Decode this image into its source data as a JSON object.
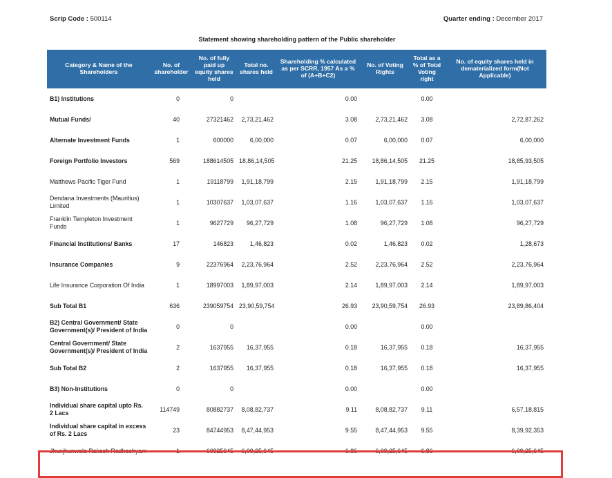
{
  "header": {
    "scrip_code_label": "Scrip Code : ",
    "scrip_code": "500114",
    "quarter_label": "Quarter ending : ",
    "quarter": "December 2017"
  },
  "title": "Statement showing shareholding pattern of the Public shareholder",
  "columns": [
    "Category & Name of the Shareholders",
    "No. of shareholder",
    "No. of fully paid up equity shares held",
    "Total no. shares held",
    "Shareholding % calculated as per SCRR, 1957 As a % of (A+B+C2)",
    "No. of Voting Rights",
    "Total as a % of Total Voting right",
    "No. of equity shares held in dematerialized form(Not Applicable)"
  ],
  "rows": [
    {
      "bold": true,
      "cells": [
        "B1) Institutions",
        "0",
        "0",
        "",
        "0.00",
        "",
        "0.00",
        ""
      ]
    },
    {
      "bold": true,
      "cells": [
        "Mutual Funds/",
        "40",
        "27321462",
        "2,73,21,462",
        "3.08",
        "2,73,21,462",
        "3.08",
        "2,72,87,262"
      ]
    },
    {
      "bold": true,
      "cells": [
        "Alternate Investment Funds",
        "1",
        "600000",
        "6,00,000",
        "0.07",
        "6,00,000",
        "0.07",
        "6,00,000"
      ]
    },
    {
      "bold": true,
      "cells": [
        "Foreign Portfolio Investors",
        "569",
        "188614505",
        "18,86,14,505",
        "21.25",
        "18,86,14,505",
        "21.25",
        "18,85,93,505"
      ]
    },
    {
      "bold": false,
      "cells": [
        "Matthews Pacific Tiger Fund",
        "1",
        "19118799",
        "1,91,18,799",
        "2.15",
        "1,91,18,799",
        "2.15",
        "1,91,18,799"
      ]
    },
    {
      "bold": false,
      "cells": [
        "Dendana Investments (Mauritius) Limited",
        "1",
        "10307637",
        "1,03,07,637",
        "1.16",
        "1,03,07,637",
        "1.16",
        "1,03,07,637"
      ]
    },
    {
      "bold": false,
      "cells": [
        "Franklin Templeton Investment Funds",
        "1",
        "9627729",
        "96,27,729",
        "1.08",
        "96,27,729",
        "1.08",
        "96,27,729"
      ]
    },
    {
      "bold": true,
      "cells": [
        "Financial Institutions/ Banks",
        "17",
        "146823",
        "1,46,823",
        "0.02",
        "1,46,823",
        "0.02",
        "1,28,673"
      ]
    },
    {
      "bold": true,
      "cells": [
        "Insurance Companies",
        "9",
        "22376964",
        "2,23,76,964",
        "2.52",
        "2,23,76,964",
        "2.52",
        "2,23,76,964"
      ]
    },
    {
      "bold": false,
      "cells": [
        "Life Insurance Corporation Of India",
        "1",
        "18997003",
        "1,89,97,003",
        "2.14",
        "1,89,97,003",
        "2.14",
        "1,89,97,003"
      ]
    },
    {
      "bold": true,
      "cells": [
        "Sub Total B1",
        "636",
        "239059754",
        "23,90,59,754",
        "26.93",
        "23,90,59,754",
        "26.93",
        "23,89,86,404"
      ]
    },
    {
      "bold": true,
      "cells": [
        "B2) Central Government/ State Government(s)/ President of India",
        "0",
        "0",
        "",
        "0.00",
        "",
        "0.00",
        ""
      ]
    },
    {
      "bold": true,
      "cells": [
        "Central Government/ State Government(s)/ President of India",
        "2",
        "1637955",
        "16,37,955",
        "0.18",
        "16,37,955",
        "0.18",
        "16,37,955"
      ]
    },
    {
      "bold": true,
      "cells": [
        "Sub Total B2",
        "2",
        "1637955",
        "16,37,955",
        "0.18",
        "16,37,955",
        "0.18",
        "16,37,955"
      ]
    },
    {
      "bold": true,
      "cells": [
        "B3) Non-Institutions",
        "0",
        "0",
        "",
        "0.00",
        "",
        "0.00",
        ""
      ]
    },
    {
      "bold": true,
      "cells": [
        "Individual share capital upto Rs. 2 Lacs",
        "114749",
        "80882737",
        "8,08,82,737",
        "9.11",
        "8,08,82,737",
        "9.11",
        "6,57,18,815"
      ]
    },
    {
      "bold": true,
      "cells": [
        "Individual share capital in excess of Rs. 2 Lacs",
        "23",
        "84744953",
        "8,47,44,953",
        "9.55",
        "8,47,44,953",
        "9.55",
        "8,39,92,353"
      ]
    },
    {
      "bold": false,
      "cells": [
        "Jhunjhunwala Rakesh Radheshyam",
        "1",
        "60925645",
        "6,09,25,645",
        "6.86",
        "6,09,25,645",
        "6.86",
        "6,09,25,645"
      ]
    }
  ]
}
